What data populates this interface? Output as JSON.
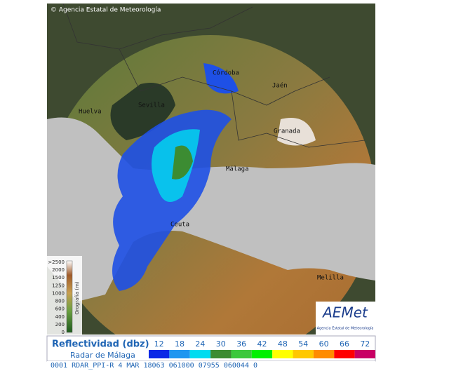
{
  "header": {
    "copyright": "© Agencia Estatal de Meteorología"
  },
  "cities": [
    "Córdoba",
    "Jaén",
    "Sevilla",
    "Huelva",
    "Granada",
    "Málaga",
    "Ceuta",
    "Melilla"
  ],
  "orography": {
    "title": "Orografía (m)",
    "labels": [
      ">2500",
      "2000",
      "1500",
      "1250",
      "1000",
      "800",
      "600",
      "400",
      "200",
      "0"
    ]
  },
  "logo": {
    "name": "AEMet",
    "subtitle": "Agencia Estatal de Meteorología"
  },
  "legend": {
    "title": "Reflectividad (dbz)",
    "subtitle": "Radar de Málaga",
    "scale": [
      {
        "value": 12,
        "color": "#0a28e6"
      },
      {
        "value": 18,
        "color": "#1e96f0"
      },
      {
        "value": 24,
        "color": "#00dcf0"
      },
      {
        "value": 30,
        "color": "#3c8c32"
      },
      {
        "value": 36,
        "color": "#3cc83c"
      },
      {
        "value": 42,
        "color": "#00f000"
      },
      {
        "value": 48,
        "color": "#ffff00"
      },
      {
        "value": 54,
        "color": "#ffc800"
      },
      {
        "value": 60,
        "color": "#ff8c00"
      },
      {
        "value": 66,
        "color": "#ff0000"
      },
      {
        "value": 72,
        "color": "#c80064"
      }
    ]
  },
  "status": "0001 RDAR_PPI-R   4 MAR 18063 061000 07955 060044 0"
}
